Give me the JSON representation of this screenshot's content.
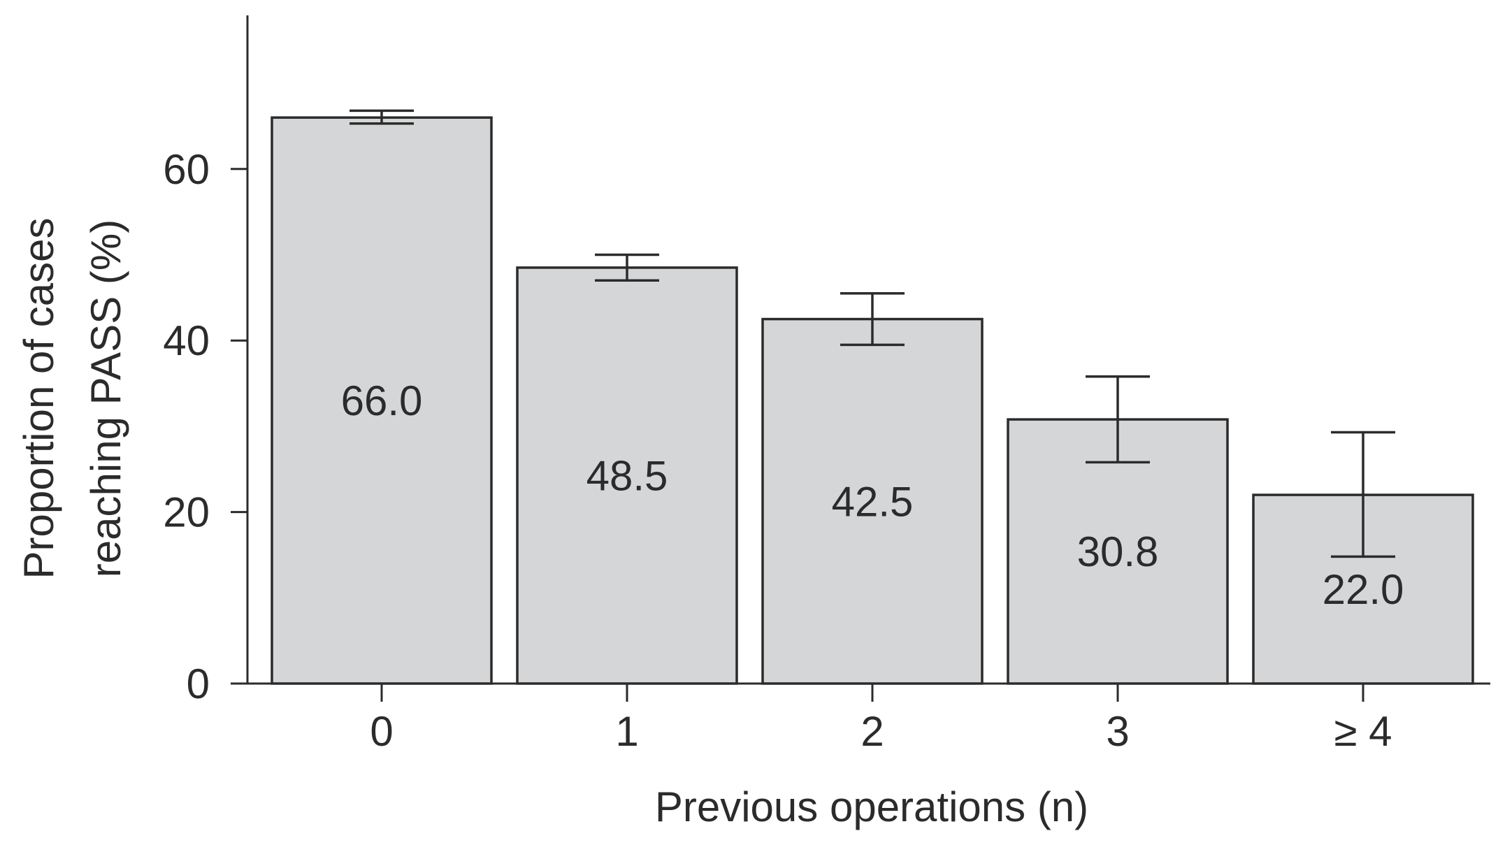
{
  "chart_data": {
    "type": "bar",
    "title": "",
    "xlabel": "Previous operations (n)",
    "ylabel_lines": [
      "Proportion of cases",
      "reaching PASS (%)"
    ],
    "categories": [
      "0",
      "1",
      "2",
      "3",
      "≥ 4"
    ],
    "values": [
      66.0,
      48.5,
      42.5,
      30.8,
      22.0
    ],
    "value_labels": [
      "66.0",
      "48.5",
      "42.5",
      "30.8",
      "22.0"
    ],
    "error_bars": [
      {
        "low": 65.3,
        "high": 66.8
      },
      {
        "low": 47.0,
        "high": 50.0
      },
      {
        "low": 39.5,
        "high": 45.5
      },
      {
        "low": 25.8,
        "high": 35.8
      },
      {
        "low": 14.8,
        "high": 29.3
      }
    ],
    "y_ticks": [
      0,
      20,
      40,
      60
    ],
    "y_tick_labels": [
      "0",
      "20",
      "40",
      "60"
    ],
    "ylim": [
      0,
      78
    ],
    "grid": false,
    "legend": "none",
    "colors": {
      "bar_fill": "#d5d6d8",
      "bar_stroke": "#2b2b2b",
      "text": "#2b2b2b"
    }
  }
}
